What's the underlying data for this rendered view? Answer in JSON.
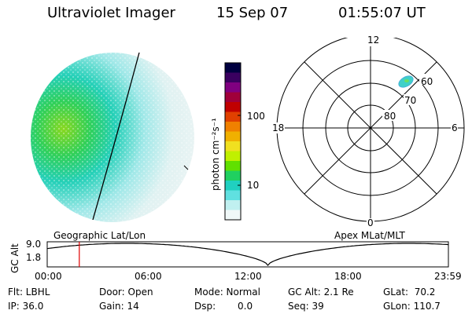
{
  "header": {
    "instrument": "Ultraviolet Imager",
    "date": "15 Sep 07",
    "time": "01:55:07 UT"
  },
  "colorbar": {
    "unit_label": "photon cm⁻²s⁻¹",
    "tick_labels": [
      "100",
      "10"
    ],
    "colors": [
      "#000040",
      "#3a0060",
      "#800080",
      "#a0003a",
      "#c00000",
      "#e04000",
      "#f08000",
      "#f0b000",
      "#f0e020",
      "#c0f000",
      "#60e000",
      "#20d060",
      "#20d0c0",
      "#60e0e0",
      "#c0f0f0",
      "#f0f8f8"
    ]
  },
  "polar": {
    "mlt_labels": {
      "top": "12",
      "bottom": "0",
      "left": "18",
      "right": "6"
    },
    "lat_labels": [
      "60",
      "70",
      "80"
    ]
  },
  "timeline": {
    "left_title": "Geographic Lat/Lon",
    "right_title": "Apex MLat/MLT",
    "axis_label": "GC Alt",
    "y_labels": [
      "9.0",
      "1.8"
    ],
    "x_labels": [
      "00:00",
      "06:00",
      "12:00",
      "18:00",
      "23:59"
    ],
    "current_time_fraction": 0.08
  },
  "info": {
    "flt": "Flt: LBHL",
    "ip": "IP: 36.0",
    "door": "Door: Open",
    "gain": "Gain: 14",
    "mode": "Mode: Normal",
    "dsp_label": "Dsp:",
    "dsp_value": "0.0",
    "gcalt": "GC Alt: 2.1 Re",
    "seq": "Seq: 39",
    "glat": "GLat:  70.2",
    "glon": "GLon: 110.7"
  },
  "colors": {
    "outline": "#000000",
    "marker": "#e00000"
  }
}
